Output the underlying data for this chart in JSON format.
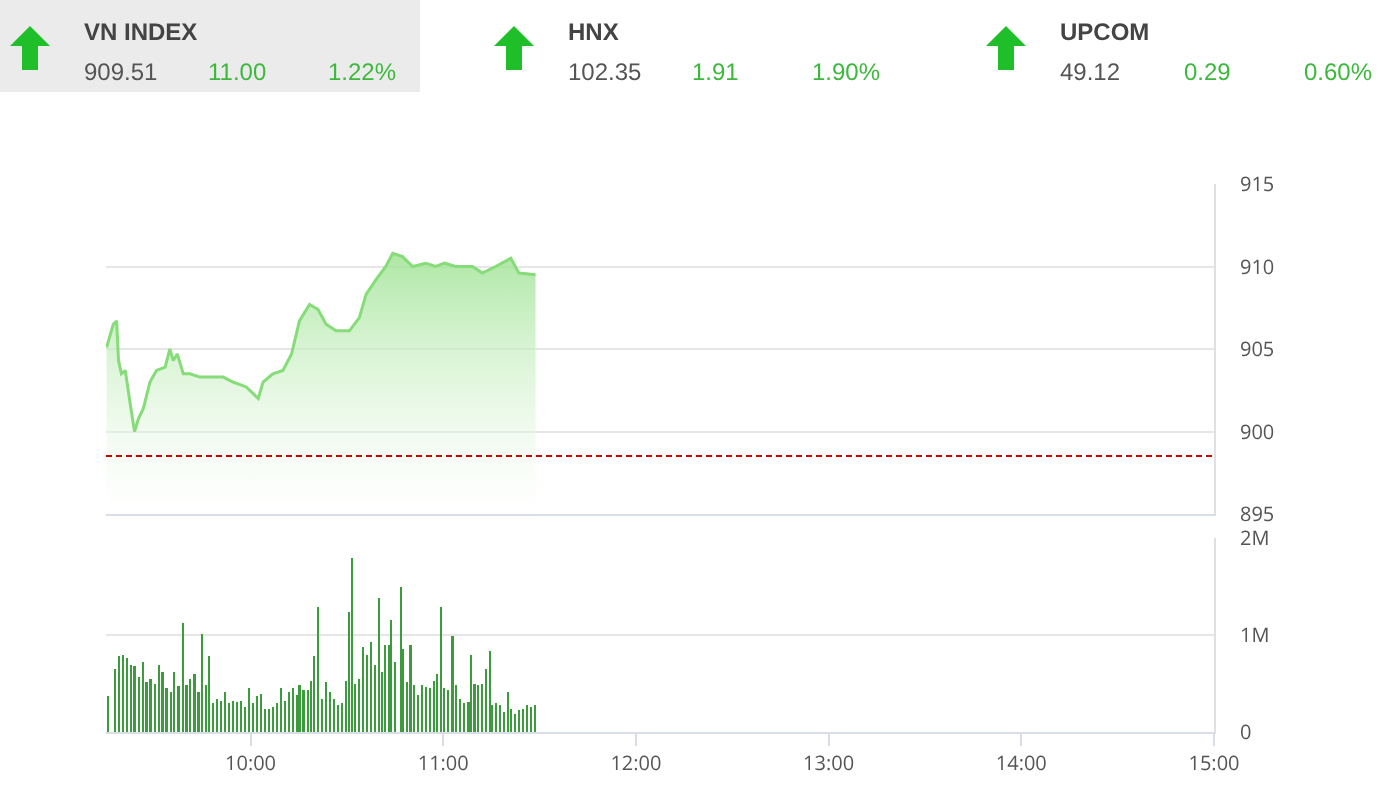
{
  "chart_data": [
    {
      "type": "other",
      "categories": [
        "VN INDEX",
        "HNX",
        "UPCOM"
      ],
      "annotations": [
        "909.51",
        "11.00",
        "1.22%",
        "102.35",
        "1.91",
        "1.90%",
        "49.12",
        "0.29",
        "0.60%"
      ]
    },
    {
      "type": "area",
      "color": "#86dc78",
      "xlim": [
        9.25,
        15
      ],
      "ylim": [
        895,
        915
      ],
      "yticks": [
        895,
        900,
        905,
        910,
        915
      ],
      "grid": "y",
      "tick_labels": "y",
      "x": [
        9.253,
        9.288,
        9.305,
        9.315,
        9.33,
        9.35,
        9.374,
        9.398,
        9.419,
        9.444,
        9.478,
        9.512,
        9.557,
        9.581,
        9.599,
        9.62,
        9.651,
        9.685,
        9.737,
        9.806,
        9.858,
        9.909,
        9.978,
        10.04,
        10.065,
        10.116,
        10.168,
        10.213,
        10.254,
        10.306,
        10.35,
        10.392,
        10.444,
        10.513,
        10.565,
        10.599,
        10.651,
        10.702,
        10.738,
        10.789,
        10.841,
        10.909,
        10.961,
        11.007,
        11.065,
        11.152,
        11.203,
        11.272,
        11.351,
        11.393,
        11.479
      ],
      "values": [
        905.1,
        906.5,
        906.7,
        904.3,
        903.5,
        903.7,
        901.8,
        900.0,
        900.8,
        901.4,
        903.0,
        903.7,
        903.9,
        905.0,
        904.3,
        904.7,
        903.5,
        903.5,
        903.3,
        903.3,
        903.3,
        903.0,
        902.7,
        902.0,
        903.0,
        903.5,
        903.7,
        904.7,
        906.7,
        907.7,
        907.4,
        906.5,
        906.1,
        906.1,
        906.9,
        908.3,
        909.2,
        910.0,
        910.8,
        910.6,
        910.0,
        910.2,
        910.0,
        910.2,
        910.0,
        910.0,
        909.6,
        910.0,
        910.5,
        909.6,
        909.5
      ],
      "ref_lines": [
        {
          "axis": "y",
          "value": 898.51,
          "color": "#cc0000",
          "line_style": "dashed"
        }
      ]
    },
    {
      "type": "bar",
      "color": "#3c9b3c",
      "xlim": [
        9.25,
        15
      ],
      "xticks": [
        {
          "value": 10,
          "label": "10:00"
        },
        {
          "value": 11,
          "label": "11:00"
        },
        {
          "value": 12,
          "label": "12:00"
        },
        {
          "value": 13,
          "label": "13:00"
        },
        {
          "value": 14,
          "label": "14:00"
        },
        {
          "value": 15,
          "label": "15:00"
        }
      ],
      "ylim": [
        0,
        2000000
      ],
      "yticks": [
        0,
        {
          "value": 1000000,
          "label": "1M"
        },
        {
          "value": 2000000,
          "label": "2M"
        }
      ],
      "grid": "y",
      "x": [
        9.26,
        9.295,
        9.316,
        9.336,
        9.357,
        9.378,
        9.398,
        9.419,
        9.44,
        9.46,
        9.481,
        9.502,
        9.523,
        9.543,
        9.564,
        9.585,
        9.605,
        9.626,
        9.65,
        9.668,
        9.688,
        9.709,
        9.73,
        9.75,
        9.771,
        9.785,
        9.806,
        9.826,
        9.847,
        9.868,
        9.888,
        9.909,
        9.93,
        9.95,
        9.971,
        9.992,
        10.013,
        10.033,
        10.054,
        10.075,
        10.095,
        10.116,
        10.137,
        10.158,
        10.178,
        10.199,
        10.22,
        10.24,
        10.254,
        10.275,
        10.296,
        10.316,
        10.33,
        10.351,
        10.371,
        10.392,
        10.413,
        10.434,
        10.454,
        10.475,
        10.496,
        10.509,
        10.527,
        10.544,
        10.565,
        10.585,
        10.606,
        10.627,
        10.648,
        10.665,
        10.682,
        10.696,
        10.717,
        10.73,
        10.751,
        10.779,
        10.792,
        10.813,
        10.83,
        10.848,
        10.868,
        10.889,
        10.91,
        10.93,
        10.951,
        10.968,
        10.989,
        11.006,
        11.027,
        11.048,
        11.068,
        11.089,
        11.11,
        11.131,
        11.144,
        11.162,
        11.179,
        11.2,
        11.22,
        11.241,
        11.255,
        11.276,
        11.296,
        11.317,
        11.334,
        11.351,
        11.372,
        11.393,
        11.413,
        11.434,
        11.455,
        11.476
      ],
      "values": [
        370000,
        650000,
        780000,
        790000,
        760000,
        690000,
        680000,
        570000,
        720000,
        520000,
        550000,
        500000,
        690000,
        620000,
        450000,
        410000,
        620000,
        470000,
        1120000,
        480000,
        550000,
        600000,
        410000,
        1010000,
        480000,
        780000,
        300000,
        340000,
        320000,
        410000,
        300000,
        320000,
        310000,
        320000,
        260000,
        450000,
        300000,
        370000,
        390000,
        240000,
        240000,
        260000,
        300000,
        450000,
        320000,
        410000,
        450000,
        380000,
        480000,
        430000,
        430000,
        530000,
        780000,
        1290000,
        340000,
        520000,
        410000,
        340000,
        280000,
        300000,
        530000,
        1240000,
        1790000,
        500000,
        550000,
        880000,
        790000,
        930000,
        690000,
        1380000,
        620000,
        900000,
        900000,
        1150000,
        720000,
        1500000,
        860000,
        520000,
        900000,
        480000,
        380000,
        480000,
        460000,
        450000,
        530000,
        600000,
        1290000,
        450000,
        430000,
        990000,
        480000,
        340000,
        300000,
        310000,
        790000,
        500000,
        480000,
        500000,
        650000,
        840000,
        280000,
        300000,
        280000,
        210000,
        410000,
        240000,
        190000,
        230000,
        240000,
        280000,
        260000,
        280000
      ]
    }
  ]
}
